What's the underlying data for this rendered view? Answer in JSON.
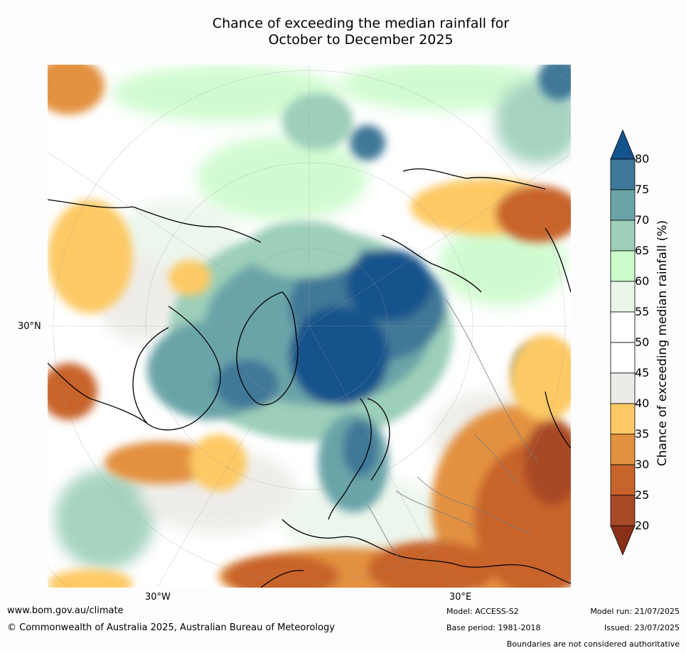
{
  "title": {
    "line1": "Chance of exceeding the median rainfall for",
    "line2": "October to December 2025"
  },
  "map": {
    "projection": "north-polar-stereographic",
    "lat_labels": [
      "30°N"
    ],
    "lon_labels": [
      "30°W",
      "30°E"
    ]
  },
  "colorbar": {
    "title": "Chance of exceeding median rainfall (%)",
    "ticks": [
      "80",
      "75",
      "70",
      "65",
      "60",
      "55",
      "50",
      "45",
      "40",
      "35",
      "30",
      "25",
      "20"
    ],
    "bins": [
      {
        "range": ">80",
        "color": "#15538c"
      },
      {
        "range": "75-80",
        "color": "#3f7898"
      },
      {
        "range": "70-75",
        "color": "#6aa4a8"
      },
      {
        "range": "65-70",
        "color": "#9dcfba"
      },
      {
        "range": "60-65",
        "color": "#ccfbcc"
      },
      {
        "range": "55-60",
        "color": "#ebf6eb"
      },
      {
        "range": "50-55",
        "color": "#ffffff"
      },
      {
        "range": "45-50",
        "color": "#ffffff"
      },
      {
        "range": "40-45",
        "color": "#edebe7"
      },
      {
        "range": "35-40",
        "color": "#fdc965"
      },
      {
        "range": "30-35",
        "color": "#e3913f"
      },
      {
        "range": "25-30",
        "color": "#c8632c"
      },
      {
        "range": "20-25",
        "color": "#a84a28"
      },
      {
        "range": "<20",
        "color": "#8a3018"
      }
    ]
  },
  "footer": {
    "url": "www.bom.gov.au/climate",
    "copyright": "© Commonwealth of Australia 2025, Australian Bureau of Meteorology",
    "model": "Model: ACCESS-S2",
    "base_period": "Base period: 1981-2018",
    "model_run": "Model run: 21/07/2025",
    "issued": "Issued: 23/07/2025",
    "disclaimer": "Boundaries are not considered authoritative"
  }
}
